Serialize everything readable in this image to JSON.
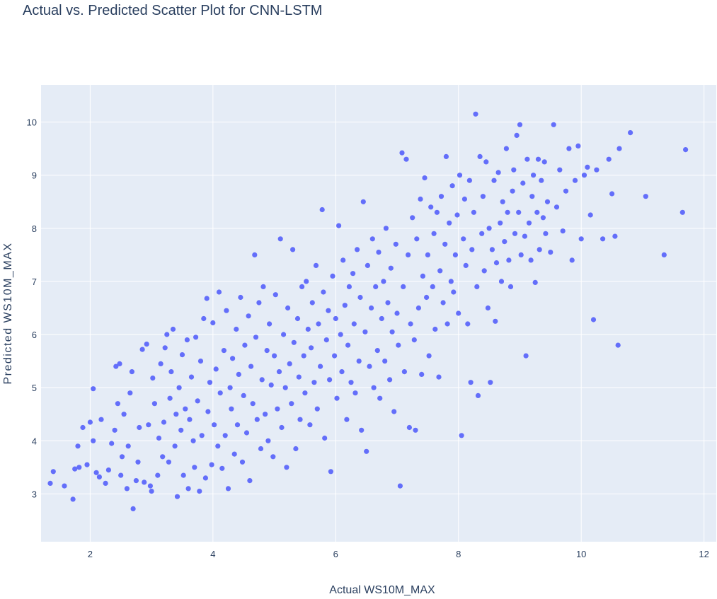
{
  "chart_data": {
    "type": "scatter",
    "title": "Actual vs. Predicted Scatter Plot for CNN-LSTM",
    "xlabel": "Actual WS10M_MAX",
    "ylabel": "Predicted WS10M_MAX",
    "xlim": [
      1.2,
      12.2
    ],
    "ylim": [
      2.1,
      10.7
    ],
    "xticks": [
      2,
      4,
      6,
      8,
      10,
      12
    ],
    "yticks": [
      3,
      4,
      5,
      6,
      7,
      8,
      9,
      10
    ],
    "grid": true,
    "colors": {
      "marker": "#636efa",
      "plot_bg": "#e5ecf6",
      "grid": "#ffffff",
      "text": "#2a3f5f"
    },
    "points": [
      [
        1.35,
        3.2
      ],
      [
        1.4,
        3.42
      ],
      [
        1.58,
        3.15
      ],
      [
        1.72,
        2.9
      ],
      [
        1.75,
        3.47
      ],
      [
        1.82,
        3.5
      ],
      [
        1.8,
        3.9
      ],
      [
        1.88,
        4.25
      ],
      [
        1.95,
        3.55
      ],
      [
        2.0,
        4.35
      ],
      [
        2.05,
        4.0
      ],
      [
        2.05,
        4.98
      ],
      [
        2.1,
        3.4
      ],
      [
        2.15,
        3.32
      ],
      [
        2.18,
        4.4
      ],
      [
        2.25,
        3.2
      ],
      [
        2.3,
        3.45
      ],
      [
        2.35,
        3.95
      ],
      [
        2.4,
        4.2
      ],
      [
        2.42,
        5.4
      ],
      [
        2.45,
        4.7
      ],
      [
        2.48,
        5.45
      ],
      [
        2.5,
        3.35
      ],
      [
        2.52,
        3.7
      ],
      [
        2.55,
        4.5
      ],
      [
        2.6,
        3.1
      ],
      [
        2.62,
        3.9
      ],
      [
        2.65,
        4.9
      ],
      [
        2.68,
        5.3
      ],
      [
        2.7,
        2.72
      ],
      [
        2.75,
        3.25
      ],
      [
        2.78,
        3.6
      ],
      [
        2.8,
        4.25
      ],
      [
        2.85,
        5.72
      ],
      [
        2.88,
        3.22
      ],
      [
        2.92,
        5.82
      ],
      [
        2.95,
        4.3
      ],
      [
        2.98,
        3.15
      ],
      [
        3.0,
        3.05
      ],
      [
        3.02,
        5.18
      ],
      [
        3.05,
        4.7
      ],
      [
        3.1,
        3.35
      ],
      [
        3.12,
        4.05
      ],
      [
        3.15,
        5.45
      ],
      [
        3.18,
        3.7
      ],
      [
        3.2,
        4.35
      ],
      [
        3.22,
        5.75
      ],
      [
        3.25,
        6.0
      ],
      [
        3.28,
        3.6
      ],
      [
        3.3,
        4.8
      ],
      [
        3.32,
        5.3
      ],
      [
        3.35,
        6.1
      ],
      [
        3.38,
        3.9
      ],
      [
        3.4,
        4.5
      ],
      [
        3.42,
        2.95
      ],
      [
        3.45,
        5.0
      ],
      [
        3.48,
        4.2
      ],
      [
        3.5,
        5.62
      ],
      [
        3.52,
        3.35
      ],
      [
        3.55,
        4.6
      ],
      [
        3.58,
        5.9
      ],
      [
        3.6,
        3.1
      ],
      [
        3.62,
        4.4
      ],
      [
        3.65,
        5.2
      ],
      [
        3.68,
        4.0
      ],
      [
        3.7,
        3.5
      ],
      [
        3.72,
        5.95
      ],
      [
        3.75,
        4.75
      ],
      [
        3.78,
        3.05
      ],
      [
        3.8,
        5.5
      ],
      [
        3.82,
        4.1
      ],
      [
        3.85,
        6.3
      ],
      [
        3.88,
        3.3
      ],
      [
        3.9,
        6.68
      ],
      [
        3.92,
        4.55
      ],
      [
        3.95,
        5.1
      ],
      [
        3.98,
        3.55
      ],
      [
        4.0,
        6.22
      ],
      [
        4.02,
        4.3
      ],
      [
        4.05,
        5.35
      ],
      [
        4.08,
        3.9
      ],
      [
        4.1,
        6.8
      ],
      [
        4.12,
        4.9
      ],
      [
        4.15,
        3.48
      ],
      [
        4.18,
        5.7
      ],
      [
        4.2,
        4.1
      ],
      [
        4.22,
        6.45
      ],
      [
        4.25,
        3.1
      ],
      [
        4.28,
        5.0
      ],
      [
        4.3,
        4.6
      ],
      [
        4.32,
        5.55
      ],
      [
        4.35,
        3.75
      ],
      [
        4.38,
        6.1
      ],
      [
        4.4,
        4.3
      ],
      [
        4.42,
        5.25
      ],
      [
        4.45,
        6.7
      ],
      [
        4.48,
        3.6
      ],
      [
        4.5,
        4.85
      ],
      [
        4.52,
        5.8
      ],
      [
        4.55,
        4.15
      ],
      [
        4.58,
        6.35
      ],
      [
        4.6,
        3.25
      ],
      [
        4.62,
        5.4
      ],
      [
        4.65,
        4.7
      ],
      [
        4.68,
        7.5
      ],
      [
        4.7,
        5.95
      ],
      [
        4.72,
        4.4
      ],
      [
        4.75,
        6.6
      ],
      [
        4.78,
        3.85
      ],
      [
        4.8,
        5.15
      ],
      [
        4.82,
        6.9
      ],
      [
        4.85,
        4.5
      ],
      [
        4.88,
        5.7
      ],
      [
        4.9,
        4.0
      ],
      [
        4.92,
        6.2
      ],
      [
        4.95,
        5.05
      ],
      [
        4.98,
        3.7
      ],
      [
        5.0,
        5.6
      ],
      [
        5.02,
        6.75
      ],
      [
        5.05,
        4.6
      ],
      [
        5.08,
        5.3
      ],
      [
        5.1,
        7.8
      ],
      [
        5.12,
        4.25
      ],
      [
        5.15,
        6.0
      ],
      [
        5.18,
        5.0
      ],
      [
        5.2,
        3.5
      ],
      [
        5.22,
        6.5
      ],
      [
        5.25,
        5.45
      ],
      [
        5.28,
        4.7
      ],
      [
        5.3,
        7.6
      ],
      [
        5.32,
        5.85
      ],
      [
        5.35,
        3.85
      ],
      [
        5.38,
        6.3
      ],
      [
        5.4,
        5.2
      ],
      [
        5.42,
        4.4
      ],
      [
        5.45,
        6.9
      ],
      [
        5.48,
        5.6
      ],
      [
        5.5,
        4.9
      ],
      [
        5.52,
        7.0
      ],
      [
        5.55,
        6.1
      ],
      [
        5.58,
        4.3
      ],
      [
        5.6,
        5.75
      ],
      [
        5.62,
        6.6
      ],
      [
        5.65,
        5.1
      ],
      [
        5.68,
        7.3
      ],
      [
        5.7,
        4.6
      ],
      [
        5.72,
        6.2
      ],
      [
        5.75,
        5.4
      ],
      [
        5.78,
        8.35
      ],
      [
        5.8,
        6.8
      ],
      [
        5.82,
        4.05
      ],
      [
        5.85,
        5.9
      ],
      [
        5.88,
        6.45
      ],
      [
        5.9,
        5.15
      ],
      [
        5.92,
        3.42
      ],
      [
        5.95,
        7.1
      ],
      [
        5.98,
        5.6
      ],
      [
        6.0,
        6.3
      ],
      [
        6.02,
        4.8
      ],
      [
        6.05,
        8.05
      ],
      [
        6.08,
        6.0
      ],
      [
        6.1,
        5.3
      ],
      [
        6.12,
        7.4
      ],
      [
        6.15,
        6.55
      ],
      [
        6.18,
        4.4
      ],
      [
        6.2,
        5.8
      ],
      [
        6.22,
        6.9
      ],
      [
        6.25,
        5.1
      ],
      [
        6.28,
        7.15
      ],
      [
        6.3,
        6.2
      ],
      [
        6.32,
        4.9
      ],
      [
        6.35,
        7.6
      ],
      [
        6.38,
        5.5
      ],
      [
        6.4,
        6.7
      ],
      [
        6.42,
        4.2
      ],
      [
        6.45,
        8.5
      ],
      [
        6.48,
        6.05
      ],
      [
        6.5,
        3.8
      ],
      [
        6.52,
        7.3
      ],
      [
        6.55,
        5.4
      ],
      [
        6.58,
        6.5
      ],
      [
        6.6,
        7.8
      ],
      [
        6.62,
        5.0
      ],
      [
        6.65,
        6.9
      ],
      [
        6.68,
        5.7
      ],
      [
        6.7,
        7.55
      ],
      [
        6.72,
        4.8
      ],
      [
        6.75,
        6.3
      ],
      [
        6.78,
        7.0
      ],
      [
        6.8,
        5.5
      ],
      [
        6.82,
        8.0
      ],
      [
        6.85,
        6.6
      ],
      [
        6.88,
        5.15
      ],
      [
        6.9,
        7.25
      ],
      [
        6.92,
        6.05
      ],
      [
        6.95,
        4.55
      ],
      [
        6.98,
        7.7
      ],
      [
        7.0,
        6.4
      ],
      [
        7.02,
        5.8
      ],
      [
        7.05,
        3.15
      ],
      [
        7.08,
        9.42
      ],
      [
        7.1,
        6.9
      ],
      [
        7.12,
        5.3
      ],
      [
        7.15,
        9.3
      ],
      [
        7.18,
        7.5
      ],
      [
        7.2,
        4.25
      ],
      [
        7.22,
        6.2
      ],
      [
        7.25,
        8.2
      ],
      [
        7.28,
        5.9
      ],
      [
        7.3,
        4.2
      ],
      [
        7.32,
        7.8
      ],
      [
        7.35,
        6.5
      ],
      [
        7.38,
        8.55
      ],
      [
        7.4,
        5.25
      ],
      [
        7.42,
        7.1
      ],
      [
        7.45,
        8.95
      ],
      [
        7.48,
        6.7
      ],
      [
        7.5,
        7.5
      ],
      [
        7.52,
        5.6
      ],
      [
        7.55,
        8.4
      ],
      [
        7.58,
        6.9
      ],
      [
        7.6,
        7.9
      ],
      [
        7.62,
        6.1
      ],
      [
        7.65,
        8.3
      ],
      [
        7.68,
        5.2
      ],
      [
        7.7,
        7.2
      ],
      [
        7.72,
        8.6
      ],
      [
        7.75,
        6.6
      ],
      [
        7.78,
        7.7
      ],
      [
        7.8,
        9.35
      ],
      [
        7.82,
        6.2
      ],
      [
        7.85,
        8.1
      ],
      [
        7.88,
        7.0
      ],
      [
        7.9,
        8.8
      ],
      [
        7.92,
        6.8
      ],
      [
        7.95,
        7.5
      ],
      [
        7.98,
        8.25
      ],
      [
        8.0,
        6.4
      ],
      [
        8.02,
        9.0
      ],
      [
        8.05,
        4.1
      ],
      [
        8.08,
        7.8
      ],
      [
        8.1,
        8.55
      ],
      [
        8.12,
        7.3
      ],
      [
        8.15,
        6.2
      ],
      [
        8.18,
        8.9
      ],
      [
        8.2,
        5.1
      ],
      [
        8.22,
        7.6
      ],
      [
        8.25,
        8.3
      ],
      [
        8.28,
        10.15
      ],
      [
        8.3,
        6.9
      ],
      [
        8.32,
        4.85
      ],
      [
        8.35,
        9.35
      ],
      [
        8.38,
        7.9
      ],
      [
        8.4,
        8.6
      ],
      [
        8.42,
        7.2
      ],
      [
        8.45,
        9.25
      ],
      [
        8.48,
        6.5
      ],
      [
        8.5,
        8.0
      ],
      [
        8.52,
        5.1
      ],
      [
        8.55,
        7.6
      ],
      [
        8.58,
        8.9
      ],
      [
        8.6,
        6.25
      ],
      [
        8.62,
        7.35
      ],
      [
        8.65,
        9.05
      ],
      [
        8.68,
        8.1
      ],
      [
        8.7,
        7.0
      ],
      [
        8.72,
        8.5
      ],
      [
        8.75,
        7.75
      ],
      [
        8.78,
        9.5
      ],
      [
        8.8,
        8.3
      ],
      [
        8.82,
        7.4
      ],
      [
        8.85,
        6.9
      ],
      [
        8.88,
        8.7
      ],
      [
        8.9,
        9.1
      ],
      [
        8.92,
        7.9
      ],
      [
        8.95,
        9.75
      ],
      [
        8.98,
        8.3
      ],
      [
        9.0,
        9.95
      ],
      [
        9.02,
        7.5
      ],
      [
        9.05,
        8.85
      ],
      [
        9.08,
        7.85
      ],
      [
        9.1,
        5.6
      ],
      [
        9.12,
        9.3
      ],
      [
        9.15,
        8.1
      ],
      [
        9.18,
        7.4
      ],
      [
        9.2,
        8.6
      ],
      [
        9.22,
        9.0
      ],
      [
        9.25,
        6.98
      ],
      [
        9.28,
        8.3
      ],
      [
        9.3,
        9.3
      ],
      [
        9.32,
        7.6
      ],
      [
        9.35,
        8.9
      ],
      [
        9.38,
        8.2
      ],
      [
        9.4,
        9.25
      ],
      [
        9.42,
        7.9
      ],
      [
        9.45,
        8.5
      ],
      [
        9.5,
        7.55
      ],
      [
        9.55,
        9.95
      ],
      [
        9.6,
        8.4
      ],
      [
        9.65,
        9.1
      ],
      [
        9.7,
        7.95
      ],
      [
        9.75,
        8.7
      ],
      [
        9.8,
        9.5
      ],
      [
        9.85,
        7.4
      ],
      [
        9.9,
        8.9
      ],
      [
        9.95,
        9.55
      ],
      [
        10.0,
        7.8
      ],
      [
        10.05,
        9.0
      ],
      [
        10.1,
        9.15
      ],
      [
        10.15,
        8.25
      ],
      [
        10.2,
        6.28
      ],
      [
        10.25,
        9.1
      ],
      [
        10.35,
        7.8
      ],
      [
        10.45,
        9.3
      ],
      [
        10.5,
        8.65
      ],
      [
        10.55,
        7.85
      ],
      [
        10.6,
        5.8
      ],
      [
        10.62,
        9.5
      ],
      [
        10.8,
        9.8
      ],
      [
        11.05,
        8.6
      ],
      [
        11.35,
        7.5
      ],
      [
        11.65,
        8.3
      ],
      [
        11.7,
        9.48
      ]
    ]
  }
}
